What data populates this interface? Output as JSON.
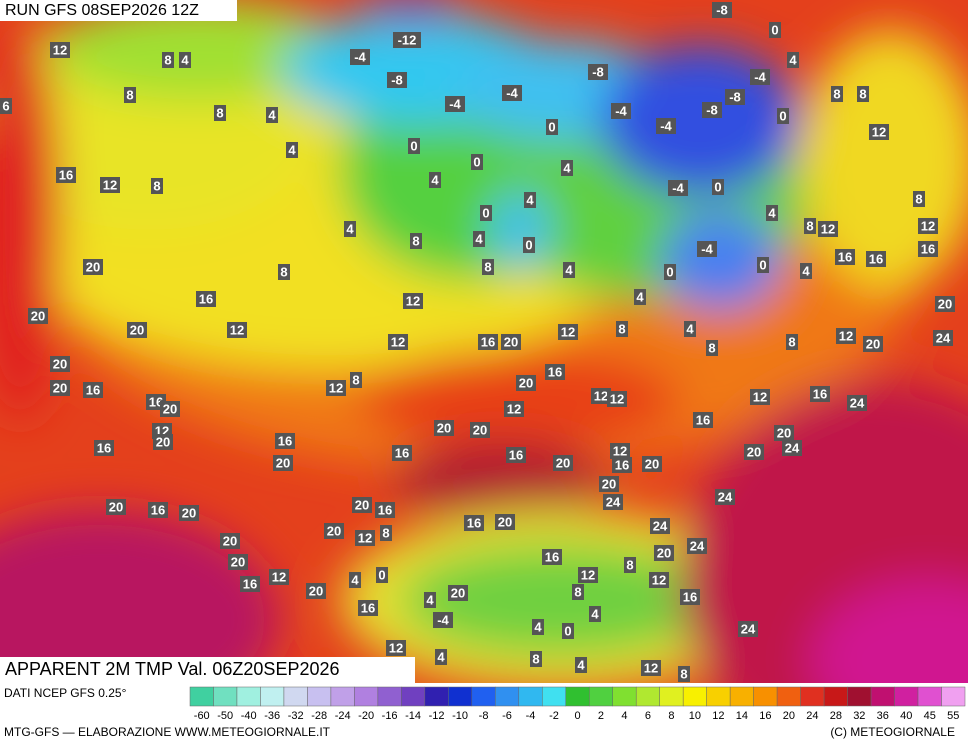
{
  "header": {
    "run": "RUN GFS 08SEP2026 12Z",
    "field": "APPARENT 2M TMP Val. 06Z20SEP2026"
  },
  "footer": {
    "source": "DATI NCEP GFS 0.25°",
    "credit": "MTG-GFS — ELABORAZIONE WWW.METEOGIORNALE.IT",
    "copyright": "(C) METEOGIORNALE"
  },
  "colorbar": {
    "labels": [
      -60,
      -50,
      -40,
      -36,
      -32,
      -28,
      -24,
      -20,
      -16,
      -14,
      -12,
      -10,
      -8,
      -6,
      -4,
      -2,
      0,
      2,
      4,
      6,
      8,
      10,
      12,
      14,
      16,
      20,
      24,
      28,
      32,
      36,
      40,
      45,
      55
    ],
    "colors": [
      "#40d0a0",
      "#70e0c0",
      "#a0f0e0",
      "#c0f0f0",
      "#d0d8f0",
      "#c8c0f0",
      "#c0a0e8",
      "#b080e0",
      "#9060d0",
      "#7040c0",
      "#3020b0",
      "#1030d0",
      "#2060f0",
      "#3090f0",
      "#30b8f0",
      "#40e0f0",
      "#30c030",
      "#50d040",
      "#80e030",
      "#b0e830",
      "#e0f020",
      "#f8f000",
      "#f8d000",
      "#f8b000",
      "#f89000",
      "#f06010",
      "#e03020",
      "#c81818",
      "#a01030",
      "#c01070",
      "#d020a0",
      "#e050d0",
      "#f0a0f0"
    ]
  },
  "map": {
    "labels": [
      12,
      8,
      4,
      8,
      8,
      4,
      4,
      16,
      12,
      8,
      -4,
      -12,
      -8,
      -4,
      -4,
      0,
      0,
      0,
      4,
      4,
      4,
      0,
      4,
      8,
      4,
      0,
      8,
      4,
      8,
      20,
      16,
      12,
      20,
      20,
      12,
      12,
      16,
      20,
      12,
      8,
      20,
      20,
      16,
      12,
      8,
      20,
      16,
      12,
      12,
      12,
      -8,
      0,
      -8,
      -4,
      -4,
      -8,
      -8,
      -4,
      0,
      8,
      8,
      12,
      4,
      -4,
      0,
      4,
      -4,
      0,
      0,
      4,
      4,
      4,
      8,
      8,
      12,
      20,
      24,
      20,
      16,
      16,
      16,
      12,
      12,
      8,
      8,
      12,
      16,
      24,
      16,
      20,
      24,
      20,
      16,
      20,
      16,
      20,
      20,
      16,
      20,
      12,
      16,
      20,
      20,
      24,
      24,
      24,
      24,
      20,
      20,
      16,
      20,
      20,
      20,
      16,
      12,
      20,
      20,
      16,
      20,
      12,
      8,
      16,
      20,
      16,
      12,
      8,
      12,
      8,
      16,
      20,
      4,
      4,
      0,
      16,
      -4,
      4,
      4,
      0,
      24,
      12,
      4,
      8,
      4,
      12,
      8,
      16,
      16,
      20,
      12,
      20,
      6
    ]
  }
}
